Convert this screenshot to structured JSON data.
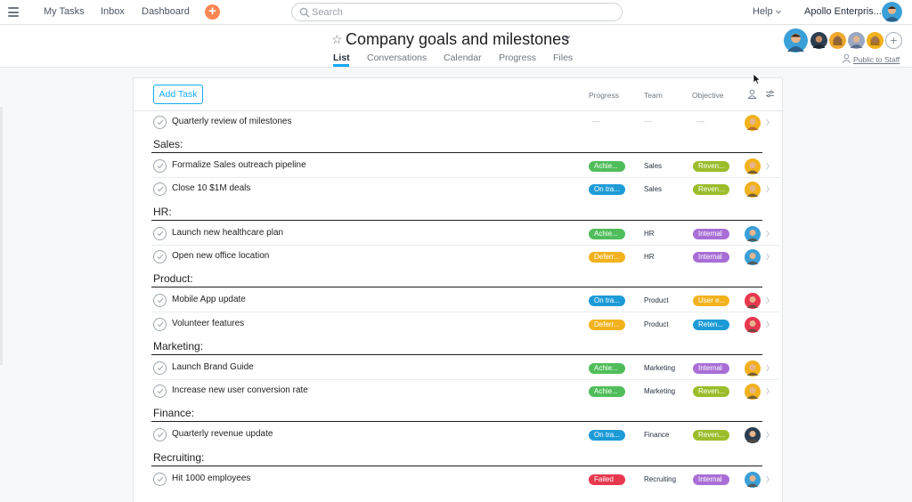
{
  "nav": {
    "my_tasks": "My Tasks",
    "inbox": "Inbox",
    "dashboard": "Dashboard",
    "search_placeholder": "Search",
    "help": "Help",
    "org": "Apollo Enterpris..."
  },
  "project": {
    "title": "Company goals and milestones",
    "tabs": [
      "List",
      "Conversations",
      "Calendar",
      "Progress",
      "Files"
    ],
    "active_tab": "List",
    "public_label": "Public to Staff"
  },
  "list": {
    "add_task": "Add Task",
    "columns": [
      "Progress",
      "Team",
      "Objective"
    ],
    "standalone_task": {
      "name": "Quarterly review of milestones",
      "progress": "—",
      "team": "—",
      "objective": "—"
    },
    "sections": [
      {
        "name": "Sales:",
        "tasks": [
          {
            "name": "Formalize Sales outreach pipeline",
            "progress": "Achie...",
            "progress_color": "#4fbe5a",
            "team": "Sales",
            "objective": "Reven...",
            "objective_color": "#9bbd2b"
          },
          {
            "name": "Close 10 $1M deals",
            "progress": "On tra...",
            "progress_color": "#1d9bd7",
            "team": "Sales",
            "objective": "Reven...",
            "objective_color": "#9bbd2b"
          }
        ]
      },
      {
        "name": "HR:",
        "tasks": [
          {
            "name": "Launch new healthcare plan",
            "progress": "Achie...",
            "progress_color": "#4fbe5a",
            "team": "HR",
            "objective": "Internal",
            "objective_color": "#a86ed6"
          },
          {
            "name": "Open new office location",
            "progress": "Deferr...",
            "progress_color": "#f2b21d",
            "team": "HR",
            "objective": "Internal",
            "objective_color": "#a86ed6"
          }
        ]
      },
      {
        "name": "Product:",
        "tasks": [
          {
            "name": "Mobile App update",
            "progress": "On tra...",
            "progress_color": "#1d9bd7",
            "team": "Product",
            "objective": "User e...",
            "objective_color": "#f2b21d"
          },
          {
            "name": "Volunteer features",
            "progress": "Deferr...",
            "progress_color": "#f2b21d",
            "team": "Product",
            "objective": "Reten...",
            "objective_color": "#1d9bd7"
          }
        ]
      },
      {
        "name": "Marketing:",
        "tasks": [
          {
            "name": "Launch Brand Guide",
            "progress": "Achie...",
            "progress_color": "#4fbe5a",
            "team": "Marketing",
            "objective": "Internal",
            "objective_color": "#a86ed6"
          },
          {
            "name": "Increase new user conversion rate",
            "progress": "Achie...",
            "progress_color": "#4fbe5a",
            "team": "Marketing",
            "objective": "Reven...",
            "objective_color": "#9bbd2b"
          }
        ]
      },
      {
        "name": "Finance:",
        "tasks": [
          {
            "name": "Quarterly revenue update",
            "progress": "On tra...",
            "progress_color": "#1d9bd7",
            "team": "Finance",
            "objective": "Reven...",
            "objective_color": "#9bbd2b"
          }
        ]
      },
      {
        "name": "Recruiting:",
        "tasks": [
          {
            "name": "Hit 1000 employees",
            "progress": "Failed",
            "progress_color": "#e8384f",
            "team": "Recruiting",
            "objective": "Internal",
            "objective_color": "#a86ed6"
          }
        ]
      }
    ]
  },
  "icons": {
    "menu": "hamburger-icon",
    "add": "plus-icon",
    "search": "search-icon",
    "star": "star-icon",
    "assignee": "person-icon",
    "filter": "sliders-icon"
  },
  "colors": {
    "accent": "#14aaf5",
    "quick_add": "#fc8752"
  }
}
